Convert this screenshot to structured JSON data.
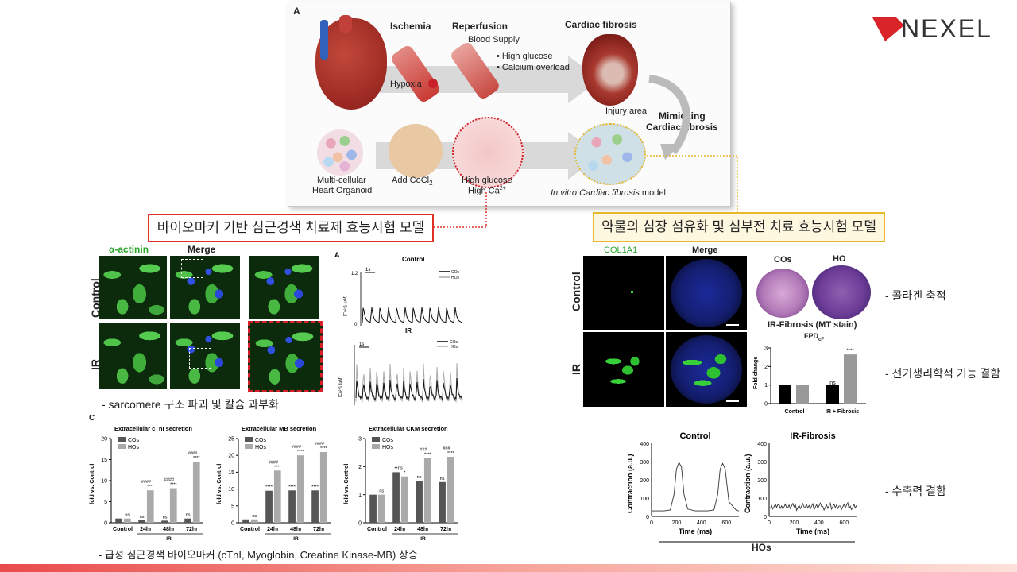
{
  "logo": {
    "text": "NEXEL",
    "accent": "#d9242a"
  },
  "schematic": {
    "panel_letter": "A",
    "stage_ischemia": "Ischemia",
    "stage_reperfusion": "Reperfusion",
    "stage_fibrosis": "Cardiac fibrosis",
    "blood_supply": "Blood Supply",
    "bullet_glucose": "High glucose",
    "bullet_calcium": "Calcium overload",
    "hypoxia": "Hypoxia",
    "injury_area": "Injury area",
    "mimicking_line1": "Mimicking",
    "mimicking_line2": "Cardiac fibrosis",
    "organoid_line1": "Multi-cellular",
    "organoid_line2": "Heart Organoid",
    "cocl2": "Add CoCl",
    "cocl2_sub": "2",
    "hg_line1": "High glucose",
    "hg_line2": "High Ca",
    "hg_sup": "2+",
    "model_italic": "In vitro Cardiac fibrosis",
    "model_suffix": " model"
  },
  "callouts": {
    "left": "바이오마커 기반 심근경색 치료제 효능시험 모델",
    "right": "약물의 심장 섬유화 및 심부전 치료 효능시험 모델"
  },
  "left_figure": {
    "col_actinin": "α-actinin",
    "col_merge": "Merge",
    "row_control": "Control",
    "row_ir": "IR",
    "caption1": "- sarcomere 구조 파괴 및 칼슘 과부화",
    "calcium": {
      "panel_letter": "A",
      "top_title": "Control",
      "bottom_title": "IR",
      "scale": "1s",
      "ylabel": "[Ca²⁺]ᵢ (μM)",
      "ytick_high": "1.2",
      "ytick_low": "0",
      "legend_cos": "COs",
      "legend_hos": "HOs"
    },
    "bar_panel_letter": "C",
    "caption2": "- 급성 심근경색 바이오마커 (cTnI, Myoglobin, Creatine Kinase-MB) 상승"
  },
  "chart_data": [
    {
      "type": "bar",
      "title": "Extracellular cTnI secretion",
      "ylabel": "fold vs. Control",
      "categories": [
        "Control",
        "24hr",
        "48hr",
        "72hr"
      ],
      "group_label": "IR",
      "ylim": [
        0,
        20
      ],
      "yticks": [
        0,
        5,
        10,
        15,
        20
      ],
      "series": [
        {
          "name": "COs",
          "values": [
            1,
            0.6,
            0.5,
            1.0
          ]
        },
        {
          "name": "HOs",
          "values": [
            1,
            7.7,
            8.2,
            14.5
          ]
        }
      ],
      "annotations_top": [
        "",
        "####",
        "####",
        "####"
      ],
      "annotations_hos": [
        "ns",
        "****",
        "****",
        "****"
      ],
      "annotations_cos": [
        "",
        "ns",
        "ns",
        "ns"
      ]
    },
    {
      "type": "bar",
      "title": "Extracellular MB secretion",
      "ylabel": "fold vs. Control",
      "categories": [
        "Control",
        "24hr",
        "48hr",
        "72hr"
      ],
      "group_label": "IR",
      "ylim": [
        0,
        25
      ],
      "yticks": [
        0,
        5,
        10,
        15,
        20,
        25
      ],
      "series": [
        {
          "name": "COs",
          "values": [
            1,
            9.5,
            9.6,
            9.6
          ]
        },
        {
          "name": "HOs",
          "values": [
            1,
            15.5,
            20.0,
            21.0
          ]
        }
      ],
      "annotations_top": [
        "",
        "####",
        "####",
        "####"
      ],
      "annotations_hos": [
        "ns",
        "****",
        "****",
        "****"
      ],
      "annotations_cos": [
        "",
        "****",
        "****",
        "****"
      ]
    },
    {
      "type": "bar",
      "title": "Extracellular CKM secretion",
      "ylabel": "fold vs. Control",
      "categories": [
        "Control",
        "24hr",
        "48hr",
        "72hr"
      ],
      "group_label": "IR",
      "ylim": [
        0,
        3
      ],
      "yticks": [
        0,
        1,
        2,
        3
      ],
      "series": [
        {
          "name": "COs",
          "values": [
            1,
            1.8,
            1.5,
            1.45
          ]
        },
        {
          "name": "HOs",
          "values": [
            1,
            1.65,
            2.3,
            2.35
          ]
        }
      ],
      "annotations_top": [
        "",
        "ns",
        "###",
        "###"
      ],
      "annotations_hos": [
        "ns",
        "*",
        "****",
        "****"
      ],
      "annotations_cos": [
        "",
        "**",
        "ns",
        "ns"
      ]
    },
    {
      "type": "bar",
      "title": "",
      "ylabel": "Fold change",
      "categories": [
        "Control",
        "IR + Fibrosis"
      ],
      "ylim": [
        0,
        3
      ],
      "yticks": [
        0,
        1,
        2,
        3
      ],
      "series": [
        {
          "name": "COs",
          "values": [
            1.0,
            1.0
          ]
        },
        {
          "name": "HOs",
          "values": [
            1.0,
            2.65
          ]
        }
      ],
      "annotations": [
        "",
        "ns",
        "****"
      ]
    },
    {
      "type": "line",
      "title": "Control",
      "xlabel": "Time (ms)",
      "ylabel": "Contraction (a.u.)",
      "xlim": [
        0,
        700
      ],
      "ylim": [
        0,
        400
      ],
      "xticks": [
        0,
        200,
        400,
        600
      ],
      "yticks": [
        0,
        100,
        200,
        300,
        400
      ],
      "x": [
        0,
        100,
        150,
        180,
        200,
        220,
        240,
        260,
        290,
        350,
        450,
        500,
        530,
        550,
        570,
        590,
        620,
        680,
        700
      ],
      "y": [
        30,
        30,
        35,
        120,
        260,
        295,
        270,
        120,
        40,
        30,
        30,
        35,
        120,
        260,
        290,
        260,
        80,
        32,
        30
      ]
    },
    {
      "type": "line",
      "title": "IR-Fibrosis",
      "xlabel": "Time (ms)",
      "ylabel": "Contraction (a.u.)",
      "xlim": [
        0,
        700
      ],
      "ylim": [
        0,
        400
      ],
      "xticks": [
        0,
        200,
        400,
        600
      ],
      "yticks": [
        0,
        100,
        200,
        300,
        400
      ]
    }
  ],
  "right_figure": {
    "col_col1a1": "COL1A1",
    "col_merge": "Merge",
    "row_control": "Control",
    "row_ir": "IR",
    "stain_cos": "COs",
    "stain_ho": "HO",
    "stain_title": "IR-Fibrosis (MT stain)",
    "fpd_label": "FPD",
    "fpd_sub": "cF",
    "hos_caption": "HOs",
    "note1": "- 콜라겐 축적",
    "note2": "- 전기생리학적 기능 결함",
    "note3": "- 수축력 결함"
  }
}
